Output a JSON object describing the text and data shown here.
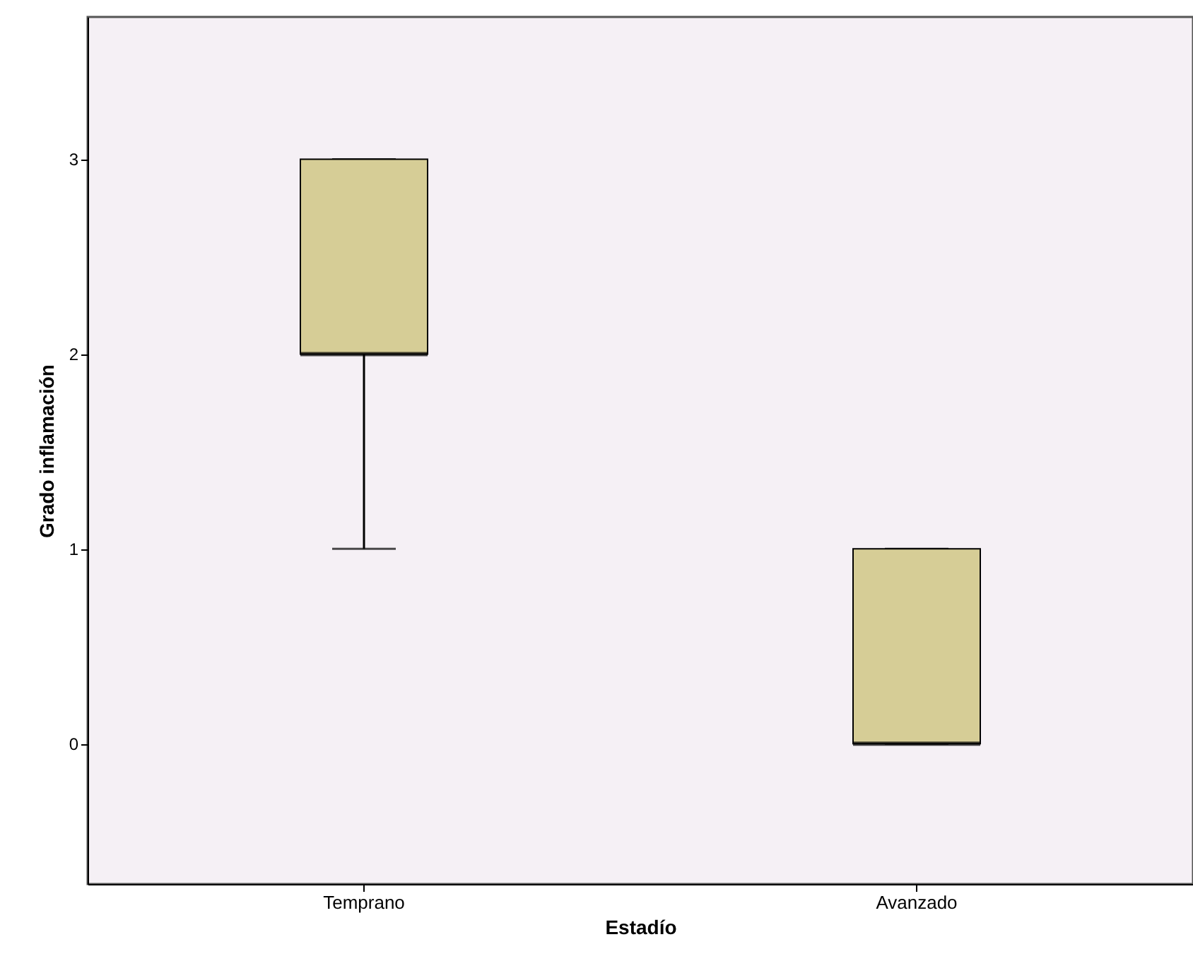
{
  "chart_data": {
    "type": "box",
    "xlabel": "Estadío",
    "ylabel": "Grado inflamación",
    "categories": [
      "Temprano",
      "Avanzado"
    ],
    "boxes": [
      {
        "low": 1,
        "q1": 2,
        "median": 2,
        "q3": 3,
        "high": 3
      },
      {
        "low": 0,
        "q1": 0,
        "median": 0,
        "q3": 1,
        "high": 1
      }
    ],
    "colors": [
      "#d6cd96",
      "#d6cd96"
    ],
    "ylim": [
      -0.72,
      3.73
    ],
    "yticks": [
      0,
      1,
      2,
      3
    ],
    "grid": false
  }
}
